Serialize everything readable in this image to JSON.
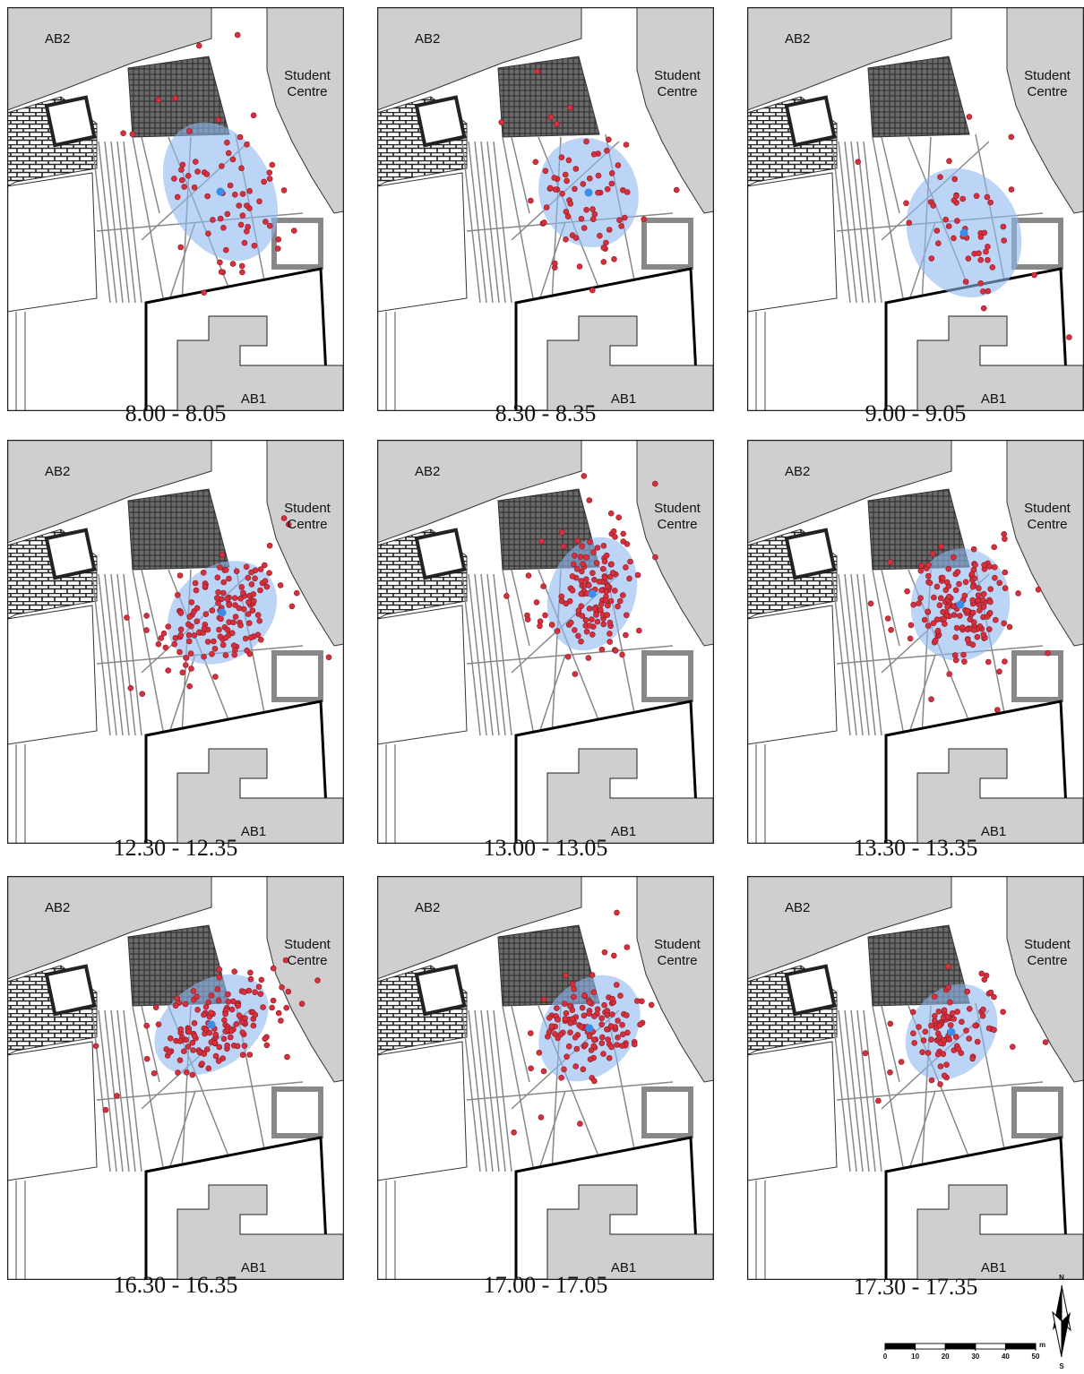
{
  "panels": [
    {
      "caption": "8.00 - 8.05",
      "top_left": "AB2",
      "top_right": [
        "Student",
        "Centre"
      ],
      "bottom": "AB1"
    },
    {
      "caption": "8.30 - 8.35",
      "top_left": "AB2",
      "top_right": [
        "Student",
        "Centre"
      ],
      "bottom": "AB1"
    },
    {
      "caption": "9.00 - 9.05",
      "top_left": "AB2",
      "top_right": [
        "Student",
        "Centre"
      ],
      "bottom": "AB1"
    },
    {
      "caption": "12.30 - 12.35",
      "top_left": "AB2",
      "top_right": [
        "Student",
        "Centre"
      ],
      "bottom": "AB1"
    },
    {
      "caption": "13.00 - 13.05",
      "top_left": "AB2",
      "top_right": [
        "Student",
        "Centre"
      ],
      "bottom": "AB1"
    },
    {
      "caption": "13.30 - 13.35",
      "top_left": "AB2",
      "top_right": [
        "Student",
        "Centre"
      ],
      "bottom": "AB1"
    },
    {
      "caption": "16.30 - 16.35",
      "top_left": "AB2",
      "top_right": [
        "Student",
        "Centre"
      ],
      "bottom": "AB1"
    },
    {
      "caption": "17.00 - 17.05",
      "top_left": "AB2",
      "top_right": [
        "Student",
        "Centre"
      ],
      "bottom": "AB1"
    },
    {
      "caption": "17.30 - 17.35",
      "top_left": "AB2",
      "top_right": [
        "Student",
        "Centre"
      ],
      "bottom": "AB1"
    }
  ],
  "scale_bar": {
    "ticks": [
      0,
      10,
      20,
      30,
      40,
      50
    ],
    "unit": "m"
  },
  "north_arrow": {
    "north": "N",
    "south": "S"
  }
}
